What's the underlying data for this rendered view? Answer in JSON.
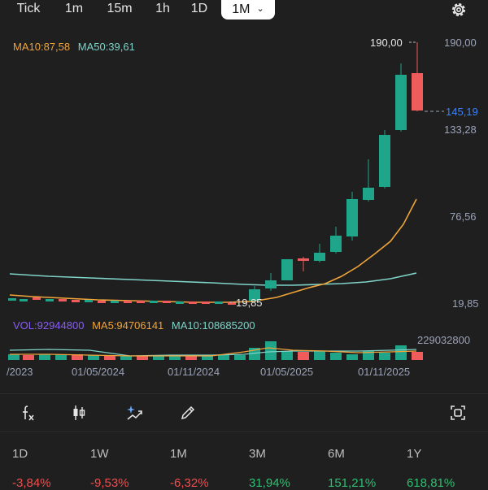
{
  "timeframes": {
    "tick": "Tick",
    "m1": "1m",
    "m15": "15m",
    "h1": "1h",
    "d1": "1D",
    "mo1": "1M"
  },
  "ma_legend": {
    "ma10": "MA10:87,58",
    "ma50": "MA50:39,61"
  },
  "price_axis": {
    "high": "190,00",
    "current": "145,19",
    "l133": "133,28",
    "l76": "76,56",
    "l19": "19,85"
  },
  "annotations": {
    "high": "190,00",
    "low": "19,85"
  },
  "volume_legend": {
    "vol": "VOL:92944800",
    "ma5": "MA5:94706141",
    "ma10": "MA10:108685200"
  },
  "volume_axis_label": "229032800",
  "date_axis": [
    "/2023",
    "01/05/2024",
    "01/11/2024",
    "01/05/2025",
    "01/11/2025"
  ],
  "colors": {
    "up": "#1fa58a",
    "down": "#f05b5b",
    "ma10": "#f0a43a",
    "ma50": "#7fd3c8",
    "vol_label": "#8a5cf5",
    "current_price": "#3b82f6",
    "positive": "#2fbf71",
    "negative": "#f04d4d"
  },
  "toolbar_icons": [
    "fx-icon",
    "candlestick-icon",
    "ai-sparkle-icon",
    "pencil-icon",
    "screenshot-icon"
  ],
  "performance": [
    {
      "label": "1D",
      "value": "-3,84%",
      "sign": "negative"
    },
    {
      "label": "1W",
      "value": "-9,53%",
      "sign": "negative"
    },
    {
      "label": "1M",
      "value": "-6,32%",
      "sign": "negative"
    },
    {
      "label": "3M",
      "value": "31,94%",
      "sign": "positive"
    },
    {
      "label": "6M",
      "value": "151,21%",
      "sign": "positive"
    },
    {
      "label": "1Y",
      "value": "618,81%",
      "sign": "positive"
    }
  ]
}
